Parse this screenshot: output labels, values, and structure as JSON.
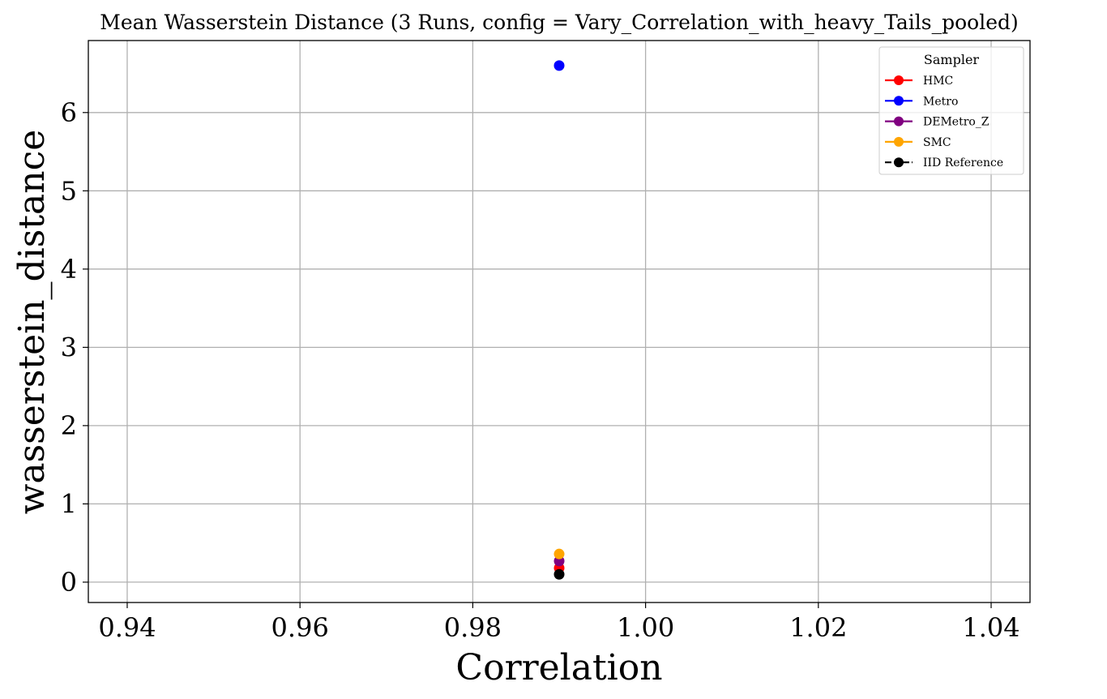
{
  "chart_data": {
    "type": "scatter",
    "title": "Mean Wasserstein Distance (3 Runs, config = Vary_Correlation_with_heavy_Tails_pooled)",
    "xlabel": "Correlation",
    "ylabel": "wasserstein_distance",
    "xlim": [
      0.9355,
      1.0445
    ],
    "ylim": [
      -0.26,
      6.92
    ],
    "xticks": [
      0.94,
      0.96,
      0.98,
      1.0,
      1.02,
      1.04
    ],
    "xtick_labels": [
      "0.94",
      "0.96",
      "0.98",
      "1.00",
      "1.02",
      "1.04"
    ],
    "yticks": [
      0,
      1,
      2,
      3,
      4,
      5,
      6
    ],
    "ytick_labels": [
      "0",
      "1",
      "2",
      "3",
      "4",
      "5",
      "6"
    ],
    "grid": true,
    "legend": {
      "title": "Sampler",
      "placement": "top-right"
    },
    "series": [
      {
        "name": "HMC",
        "color": "#ff0000",
        "line_style": "solid",
        "x": [
          0.99
        ],
        "y": [
          0.18
        ]
      },
      {
        "name": "Metro",
        "color": "#0000ff",
        "line_style": "solid",
        "x": [
          0.99
        ],
        "y": [
          6.6
        ]
      },
      {
        "name": "DEMetro_Z",
        "color": "#800080",
        "line_style": "solid",
        "x": [
          0.99
        ],
        "y": [
          0.27
        ]
      },
      {
        "name": "SMC",
        "color": "#ffa500",
        "line_style": "solid",
        "x": [
          0.99
        ],
        "y": [
          0.36
        ]
      },
      {
        "name": "IID Reference",
        "color": "#000000",
        "line_style": "dashed",
        "x": [
          0.99
        ],
        "y": [
          0.1
        ]
      }
    ]
  }
}
